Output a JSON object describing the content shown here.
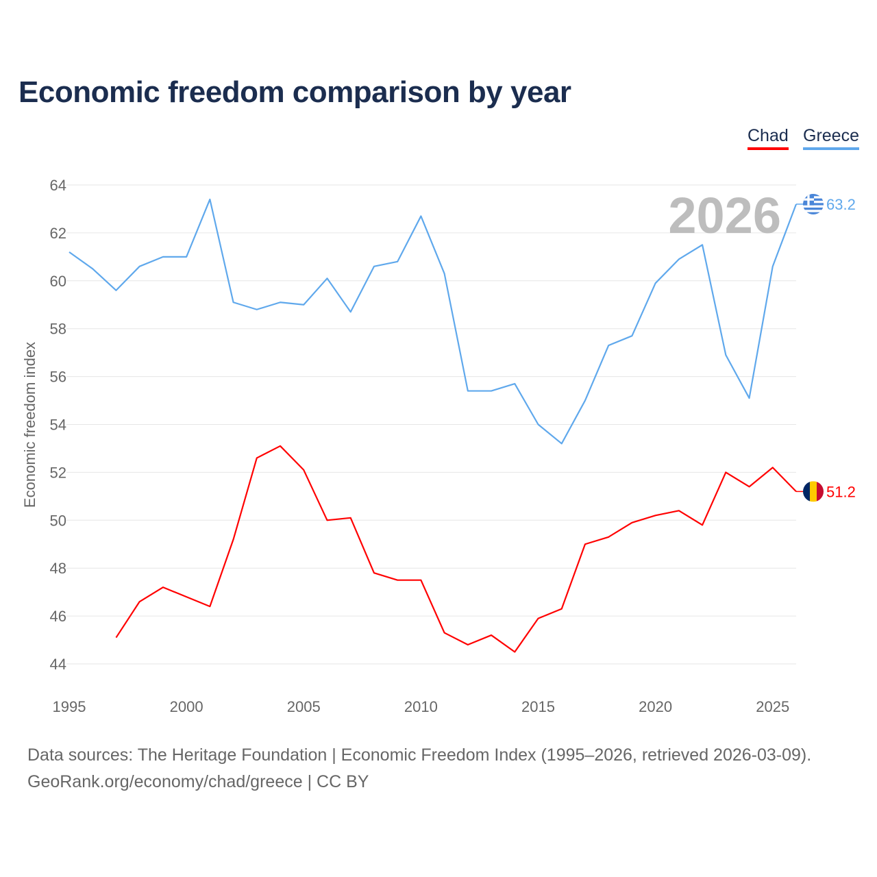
{
  "chart_data": {
    "type": "line",
    "title": "Economic freedom comparison by year",
    "xlabel": "",
    "ylabel": "Economic freedom index",
    "ylim": [
      44,
      64
    ],
    "xlim": [
      1995,
      2026
    ],
    "yticks": [
      "44",
      "46",
      "48",
      "50",
      "52",
      "54",
      "56",
      "58",
      "60",
      "62",
      "64"
    ],
    "xticks": [
      "1995",
      "2000",
      "2005",
      "2010",
      "2015",
      "2020",
      "2025"
    ],
    "grid": true,
    "legend_position": "top-right",
    "highlight_year": "2026",
    "series": [
      {
        "name": "Chad",
        "color": "#ff0000",
        "end_label": "51.2",
        "x": [
          1997,
          1998,
          1999,
          2000,
          2001,
          2002,
          2003,
          2004,
          2005,
          2006,
          2007,
          2008,
          2009,
          2010,
          2011,
          2012,
          2013,
          2014,
          2015,
          2016,
          2017,
          2018,
          2019,
          2020,
          2021,
          2022,
          2023,
          2024,
          2025,
          2026
        ],
        "values": [
          45.1,
          46.6,
          47.2,
          46.8,
          46.4,
          49.2,
          52.6,
          53.1,
          52.1,
          50.0,
          50.1,
          47.8,
          47.5,
          47.5,
          45.3,
          44.8,
          45.2,
          44.5,
          45.9,
          46.3,
          49.0,
          49.3,
          49.9,
          50.2,
          50.4,
          49.8,
          52.0,
          51.4,
          52.2,
          51.2
        ]
      },
      {
        "name": "Greece",
        "color": "#5fa8ec",
        "end_label": "63.2",
        "x": [
          1995,
          1996,
          1997,
          1998,
          1999,
          2000,
          2001,
          2002,
          2003,
          2004,
          2005,
          2006,
          2007,
          2008,
          2009,
          2010,
          2011,
          2012,
          2013,
          2014,
          2015,
          2016,
          2017,
          2018,
          2019,
          2020,
          2021,
          2022,
          2023,
          2024,
          2025,
          2026
        ],
        "values": [
          61.2,
          60.5,
          59.6,
          60.6,
          61.0,
          61.0,
          63.4,
          59.1,
          58.8,
          59.1,
          59.0,
          60.1,
          58.7,
          60.6,
          60.8,
          62.7,
          60.3,
          55.4,
          55.4,
          55.7,
          54.0,
          53.2,
          55.0,
          57.3,
          57.7,
          59.9,
          60.9,
          61.5,
          56.9,
          55.1,
          60.6,
          63.2
        ]
      }
    ]
  },
  "footer": {
    "source": "Data sources: The Heritage Foundation | Economic Freedom Index (1995–2026, retrieved 2026-03-09).",
    "credit": "GeoRank.org/economy/chad/greece | CC BY"
  }
}
